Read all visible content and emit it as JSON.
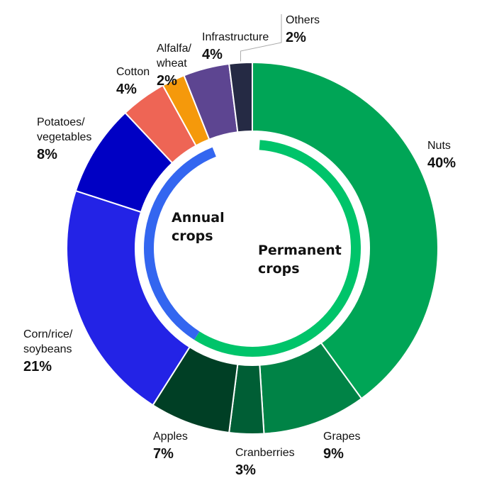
{
  "chart_data": {
    "type": "pie",
    "variant": "donut",
    "slices": [
      {
        "label": "Nuts",
        "label_lines": [
          "Nuts"
        ],
        "pct_label": "40%",
        "value": 40,
        "color": "#00a556",
        "key": "nuts"
      },
      {
        "label": "Grapes",
        "label_lines": [
          "Grapes"
        ],
        "pct_label": "9%",
        "value": 9,
        "color": "#008346",
        "key": "grapes"
      },
      {
        "label": "Cranberries",
        "label_lines": [
          "Cranberries"
        ],
        "pct_label": "3%",
        "value": 3,
        "color": "#005e35",
        "key": "cranberries"
      },
      {
        "label": "Apples",
        "label_lines": [
          "Apples"
        ],
        "pct_label": "7%",
        "value": 7,
        "color": "#003f25",
        "key": "apples"
      },
      {
        "label": "Corn/rice/soybeans",
        "label_lines": [
          "Corn/rice/",
          "soybeans"
        ],
        "pct_label": "21%",
        "value": 21,
        "color": "#2323e6",
        "key": "corn-rice-soybeans"
      },
      {
        "label": "Potatoes/vegetables",
        "label_lines": [
          "Potatoes/",
          "vegetables"
        ],
        "pct_label": "8%",
        "value": 8,
        "color": "#0000c4",
        "key": "potatoes-vegetables"
      },
      {
        "label": "Cotton",
        "label_lines": [
          "Cotton"
        ],
        "pct_label": "4%",
        "value": 4,
        "color": "#ee6555",
        "key": "cotton"
      },
      {
        "label": "Alfalfa/wheat",
        "label_lines": [
          "Alfalfa/",
          "wheat"
        ],
        "pct_label": "2%",
        "value": 2,
        "color": "#f5990b",
        "key": "alfalfa-wheat"
      },
      {
        "label": "Infrastructure",
        "label_lines": [
          "Infrastructure"
        ],
        "pct_label": "4%",
        "value": 4,
        "color": "#5d4591",
        "key": "infrastructure"
      },
      {
        "label": "Others",
        "label_lines": [
          "Others"
        ],
        "pct_label": "2%",
        "value": 2,
        "color": "#252a44",
        "key": "others"
      }
    ],
    "groups": [
      {
        "label_lines": [
          "Permanent",
          "crops"
        ],
        "color": "#00c46a",
        "key": "permanent",
        "slice_keys": [
          "nuts",
          "grapes",
          "cranberries",
          "apples"
        ]
      },
      {
        "label_lines": [
          "Annual",
          "crops"
        ],
        "color": "#3366f0",
        "key": "annual",
        "slice_keys": [
          "corn-rice-soybeans",
          "potatoes-vegetables",
          "cotton",
          "alfalfa-wheat"
        ]
      }
    ]
  }
}
